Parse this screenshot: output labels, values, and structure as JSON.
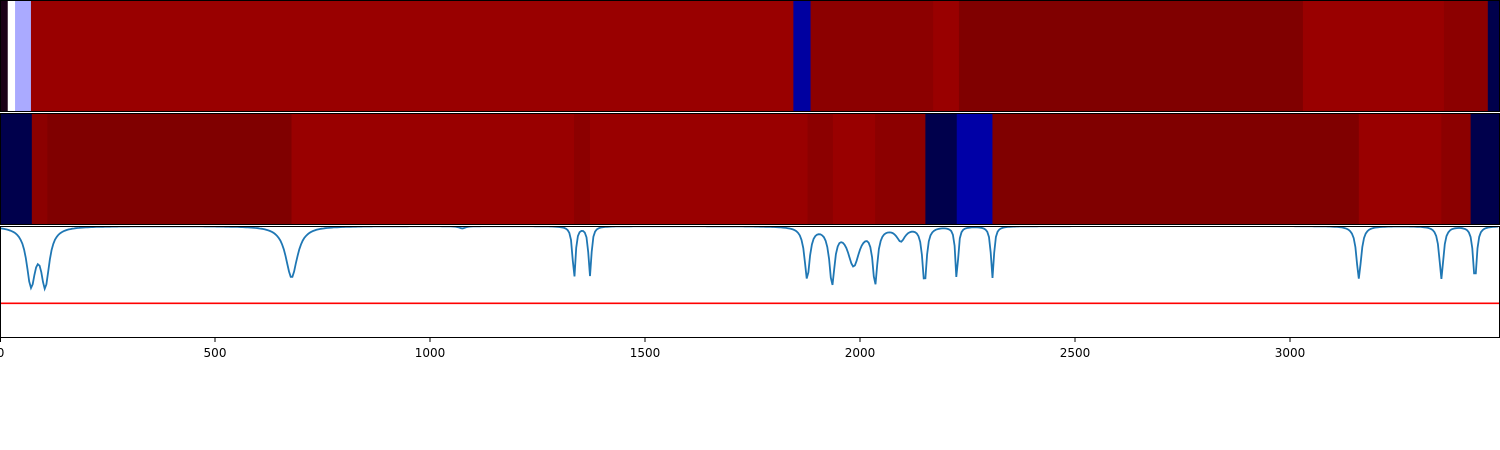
{
  "chart_data": [
    {
      "type": "heatmap",
      "panel": "top-strip",
      "xlim": [
        0,
        3486
      ],
      "segments": [
        {
          "x0": 0,
          "x1": 18,
          "color": "#1a0016"
        },
        {
          "x0": 18,
          "x1": 35,
          "color": "#ffffff"
        },
        {
          "x0": 35,
          "x1": 72,
          "color": "#aaaaff"
        },
        {
          "x0": 72,
          "x1": 1845,
          "color": "#990000"
        },
        {
          "x0": 1845,
          "x1": 1885,
          "color": "#0000a0"
        },
        {
          "x0": 1885,
          "x1": 2170,
          "color": "#8c0000"
        },
        {
          "x0": 2170,
          "x1": 2230,
          "color": "#990000"
        },
        {
          "x0": 2230,
          "x1": 3030,
          "color": "#800000"
        },
        {
          "x0": 3030,
          "x1": 3358,
          "color": "#990000"
        },
        {
          "x0": 3358,
          "x1": 3460,
          "color": "#8c0000"
        },
        {
          "x0": 3460,
          "x1": 3486,
          "color": "#00004c"
        }
      ]
    },
    {
      "type": "heatmap",
      "panel": "middle-strip",
      "xlim": [
        0,
        3486
      ],
      "segments": [
        {
          "x0": 0,
          "x1": 74,
          "color": "#00004c"
        },
        {
          "x0": 74,
          "x1": 110,
          "color": "#8c0000"
        },
        {
          "x0": 110,
          "x1": 678,
          "color": "#800000"
        },
        {
          "x0": 678,
          "x1": 1335,
          "color": "#990000"
        },
        {
          "x0": 1335,
          "x1": 1372,
          "color": "#8c0000"
        },
        {
          "x0": 1372,
          "x1": 1878,
          "color": "#990000"
        },
        {
          "x0": 1878,
          "x1": 1937,
          "color": "#8c0000"
        },
        {
          "x0": 1937,
          "x1": 2035,
          "color": "#990000"
        },
        {
          "x0": 2035,
          "x1": 2152,
          "color": "#8c0000"
        },
        {
          "x0": 2152,
          "x1": 2225,
          "color": "#00004c"
        },
        {
          "x0": 2225,
          "x1": 2308,
          "color": "#0000a6"
        },
        {
          "x0": 2308,
          "x1": 3160,
          "color": "#800000"
        },
        {
          "x0": 3160,
          "x1": 3352,
          "color": "#990000"
        },
        {
          "x0": 3352,
          "x1": 3420,
          "color": "#8c0000"
        },
        {
          "x0": 3420,
          "x1": 3486,
          "color": "#00004c"
        }
      ]
    },
    {
      "type": "line",
      "panel": "signal-plot",
      "xlim": [
        0,
        3486
      ],
      "ylim": [
        0,
        1
      ],
      "xticks": [
        0,
        500,
        1000,
        1500,
        2000,
        2500,
        3000
      ],
      "threshold": 0.31,
      "threshold_color": "#ff0000",
      "series_color": "#1f77b4",
      "baseline": 1.0,
      "dips": [
        {
          "x": 72,
          "depth": 0.5,
          "width": 30
        },
        {
          "x": 105,
          "depth": 0.5,
          "width": 28
        },
        {
          "x": 678,
          "depth": 0.46,
          "width": 40
        },
        {
          "x": 1075,
          "depth": 0.02,
          "width": 22
        },
        {
          "x": 1335,
          "depth": 0.47,
          "width": 10
        },
        {
          "x": 1372,
          "depth": 0.44,
          "width": 10
        },
        {
          "x": 1877,
          "depth": 0.46,
          "width": 18
        },
        {
          "x": 1935,
          "depth": 0.49,
          "width": 18
        },
        {
          "x": 1985,
          "depth": 0.34,
          "width": 40
        },
        {
          "x": 2035,
          "depth": 0.49,
          "width": 16
        },
        {
          "x": 2095,
          "depth": 0.12,
          "width": 30
        },
        {
          "x": 2150,
          "depth": 0.51,
          "width": 14
        },
        {
          "x": 2225,
          "depth": 0.48,
          "width": 9
        },
        {
          "x": 2308,
          "depth": 0.46,
          "width": 10
        },
        {
          "x": 3160,
          "depth": 0.47,
          "width": 16
        },
        {
          "x": 3352,
          "depth": 0.47,
          "width": 14
        },
        {
          "x": 3430,
          "depth": 0.49,
          "width": 12
        }
      ]
    }
  ]
}
